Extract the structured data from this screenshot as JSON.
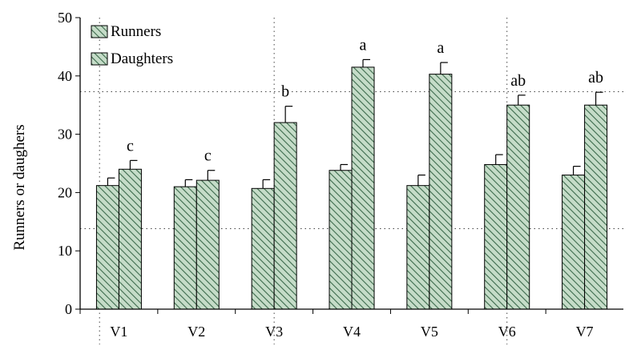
{
  "chart_data": {
    "type": "bar",
    "title": "",
    "xlabel": "",
    "ylabel": "Runners or daughers",
    "ylim": [
      0,
      50
    ],
    "yticks": [
      0,
      10,
      20,
      30,
      40,
      50
    ],
    "categories": [
      "V1",
      "V2",
      "V3",
      "V4",
      "V5",
      "V6",
      "V7"
    ],
    "series": [
      {
        "name": "Runners",
        "values": [
          21.2,
          21.0,
          20.7,
          23.8,
          21.2,
          24.8,
          23.0
        ],
        "errors": [
          1.3,
          1.2,
          1.5,
          1.0,
          1.8,
          1.7,
          1.5
        ],
        "fill": "#c5dcc8",
        "hatch": "#3c6a4c"
      },
      {
        "name": "Daughters",
        "values": [
          24.0,
          22.1,
          32.0,
          41.5,
          40.3,
          35.0,
          35.0
        ],
        "errors": [
          1.5,
          1.7,
          2.8,
          1.3,
          2.0,
          1.7,
          2.2
        ],
        "fill": "#c5dcc8",
        "hatch": "#3c6a4c"
      }
    ],
    "annotations": [
      "c",
      "c",
      "b",
      "a",
      "a",
      "ab",
      "ab"
    ],
    "legend_position": "top-left",
    "grid": "dotted"
  }
}
